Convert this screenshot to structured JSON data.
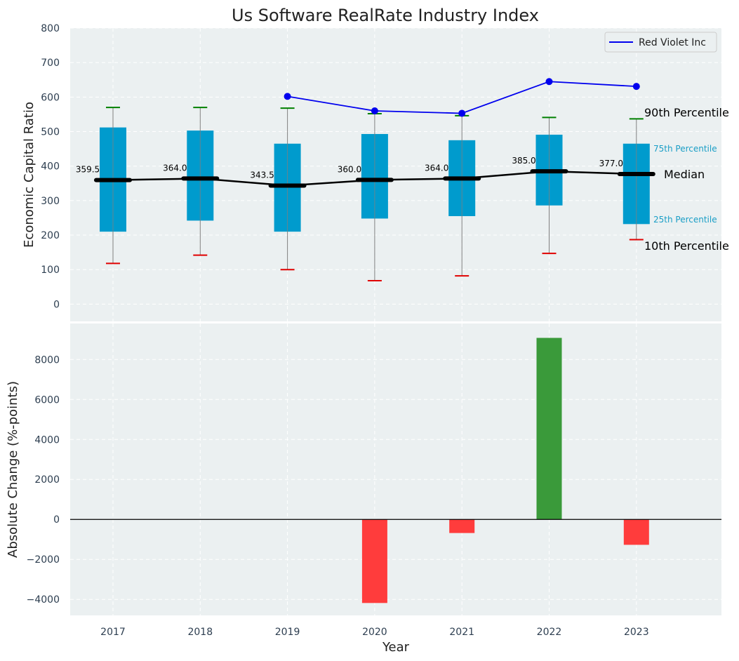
{
  "chart_data": [
    {
      "type": "box",
      "title": "Us Software RealRate Industry Index",
      "ylabel": "Economic Capital Ratio",
      "ylim": [
        -50,
        800
      ],
      "yticks": [
        0,
        100,
        200,
        300,
        400,
        500,
        600,
        700,
        800
      ],
      "categories": [
        "2017",
        "2018",
        "2019",
        "2020",
        "2021",
        "2022",
        "2023"
      ],
      "boxes": [
        {
          "year": "2017",
          "p10": 118,
          "p25": 210,
          "median": 359.5,
          "p75": 512,
          "p90": 570
        },
        {
          "year": "2018",
          "p10": 142,
          "p25": 242,
          "median": 364.0,
          "p75": 503,
          "p90": 570
        },
        {
          "year": "2019",
          "p10": 100,
          "p25": 210,
          "median": 343.5,
          "p75": 465,
          "p90": 568
        },
        {
          "year": "2020",
          "p10": 68,
          "p25": 248,
          "median": 360.0,
          "p75": 493,
          "p90": 552
        },
        {
          "year": "2021",
          "p10": 82,
          "p25": 255,
          "median": 364.0,
          "p75": 475,
          "p90": 546
        },
        {
          "year": "2022",
          "p10": 147,
          "p25": 286,
          "median": 385.0,
          "p75": 491,
          "p90": 541
        },
        {
          "year": "2023",
          "p10": 187,
          "p25": 232,
          "median": 377.0,
          "p75": 465,
          "p90": 537
        }
      ],
      "median_labels": [
        "359.5",
        "364.0",
        "343.5",
        "360.0",
        "364.0",
        "385.0",
        "377.0"
      ],
      "series": [
        {
          "name": "Red Violet Inc",
          "x": [
            "2019",
            "2020",
            "2021",
            "2022",
            "2023"
          ],
          "values": [
            602,
            560,
            553,
            645,
            631
          ]
        }
      ],
      "legend": {
        "position": "top-right"
      },
      "annotations": {
        "p90": "90th Percentile",
        "p75": "75th Percentile",
        "median": "Median",
        "p25": "25th Percentile",
        "p10": "10th Percentile"
      },
      "grid": true
    },
    {
      "type": "bar",
      "xlabel": "Year",
      "ylabel": "Absolute Change (%-points)",
      "ylim": [
        -4800,
        9800
      ],
      "yticks": [
        -4000,
        -2000,
        0,
        2000,
        4000,
        6000,
        8000
      ],
      "ytick_labels": [
        "−4000",
        "−2000",
        "0",
        "2000",
        "4000",
        "6000",
        "8000"
      ],
      "categories": [
        "2017",
        "2018",
        "2019",
        "2020",
        "2021",
        "2022",
        "2023"
      ],
      "values": [
        null,
        null,
        null,
        -4180,
        -680,
        9080,
        -1270
      ],
      "grid": true
    }
  ],
  "colors": {
    "background": "#ebf0f1",
    "box": "#009bcd",
    "whisker": "#808080",
    "p90_cap": "#008000",
    "p10_cap": "#e00000",
    "median": "#000000",
    "series": "#0000ee",
    "positive": "#3a9a3a",
    "negative": "#ff3c3c",
    "annotation_small": "#1a9ec6"
  }
}
